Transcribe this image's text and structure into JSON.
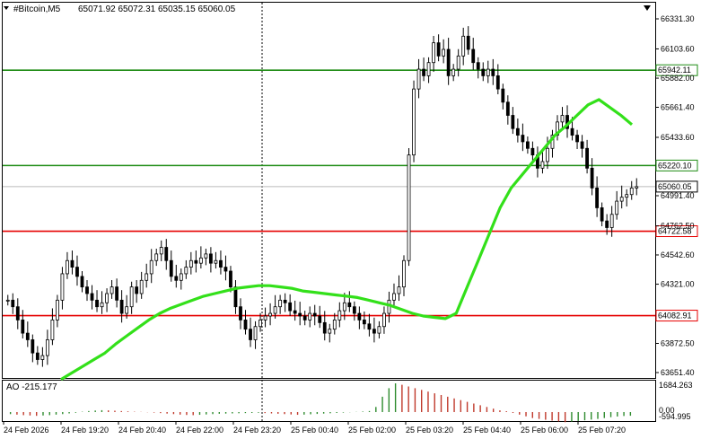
{
  "header": {
    "symbol": "#Bitcoin,M5",
    "ohlc": "65071.92 65072.31 65035.15 65060.05"
  },
  "ao_panel": {
    "label": "AO -215.177",
    "scale_top": "1684.263",
    "scale_zero": "0.00",
    "scale_bottom": "-594.995"
  },
  "colors": {
    "candles": "#000000",
    "ma": "#33e01a",
    "support_line": "#e60000",
    "resistance_line": "#1e8c14",
    "ao_up": "#2e8b2e",
    "ao_down": "#c0392b"
  },
  "chart_data": {
    "type": "candlestick",
    "ylim": [
      63650,
      66400
    ],
    "y_ticks": [
      "66331.30",
      "66103.60",
      "65882.00",
      "65661.40",
      "65433.60",
      "64991.40",
      "64762.50",
      "64542.60",
      "64321.00",
      "63872.50",
      "63651.40"
    ],
    "x_ticks": [
      "24 Feb 2026",
      "24 Feb 19:20",
      "24 Feb 20:40",
      "24 Feb 22:00",
      "24 Feb 23:20",
      "25 Feb 00:40",
      "25 Feb 02:00",
      "25 Feb 03:20",
      "25 Feb 04:40",
      "25 Feb 06:00",
      "25 Feb 07:20"
    ],
    "levels": [
      {
        "value": 65942.11,
        "label": "65942.11",
        "kind": "resistance"
      },
      {
        "value": 65220.1,
        "label": "65220.10",
        "kind": "resistance"
      },
      {
        "value": 64722.58,
        "label": "64722.58",
        "kind": "support"
      },
      {
        "value": 64082.91,
        "label": "64082.91",
        "kind": "support"
      }
    ],
    "current_price": {
      "value": 65060.05,
      "label": "65060.05"
    },
    "close_series": [
      64200,
      64150,
      64050,
      63950,
      63900,
      63800,
      63750,
      63780,
      63900,
      64050,
      64200,
      64400,
      64500,
      64450,
      64380,
      64300,
      64250,
      64200,
      64150,
      64180,
      64250,
      64300,
      64200,
      64100,
      64150,
      64300,
      64250,
      64350,
      64400,
      64500,
      64550,
      64600,
      64500,
      64380,
      64350,
      64400,
      64450,
      64500,
      64480,
      64520,
      64550,
      64480,
      64500,
      64450,
      64420,
      64300,
      64150,
      64050,
      63980,
      63900,
      64000,
      64050,
      64080,
      64100,
      64150,
      64200,
      64180,
      64120,
      64100,
      64080,
      64050,
      64100,
      64080,
      64030,
      63950,
      63980,
      64050,
      64120,
      64180,
      64150,
      64100,
      64050,
      64020,
      63980,
      63950,
      64000,
      64100,
      64200,
      64250,
      64300,
      64500,
      65300,
      65800,
      65950,
      65900,
      66000,
      66150,
      66050,
      66100,
      65900,
      65950,
      66050,
      66200,
      66100,
      66000,
      65950,
      65900,
      65950,
      65900,
      65800,
      65700,
      65600,
      65500,
      65450,
      65400,
      65350,
      65300,
      65200,
      65250,
      65350,
      65450,
      65550,
      65600,
      65500,
      65450,
      65400,
      65350,
      65200,
      65050,
      64900,
      64800,
      64750,
      64850,
      64950,
      64980,
      65000,
      65050,
      65060
    ],
    "ma_series": [
      63600,
      63650,
      63700,
      63750,
      63800,
      63870,
      63930,
      63990,
      64050,
      64100,
      64140,
      64170,
      64200,
      64230,
      64250,
      64270,
      64290,
      64300,
      64310,
      64310,
      64300,
      64290,
      64270,
      64260,
      64250,
      64240,
      64230,
      64220,
      64200,
      64180,
      64160,
      64130,
      64100,
      64080,
      64070,
      64060,
      64100,
      64300,
      64500,
      64700,
      64900,
      65050,
      65150,
      65250,
      65350,
      65450,
      65520,
      65600,
      65680,
      65720,
      65660,
      65600,
      65530
    ],
    "ao_values": [
      -120,
      -150,
      -180,
      -200,
      -220,
      -200,
      -180,
      -150,
      -120,
      -80,
      -40,
      20,
      60,
      90,
      110,
      100,
      80,
      60,
      40,
      20,
      10,
      -10,
      -30,
      -60,
      -90,
      -120,
      -150,
      -170,
      -180,
      -160,
      -140,
      -120,
      -100,
      -90,
      -80,
      -70,
      -60,
      -50,
      -40,
      -60,
      -80,
      -100,
      -120,
      -140,
      -160,
      -150,
      -130,
      -110,
      -90,
      -70,
      -50,
      -30,
      -10,
      10,
      30,
      60,
      300,
      900,
      1400,
      1684,
      1600,
      1500,
      1400,
      1300,
      1200,
      1100,
      1000,
      900,
      800,
      700,
      600,
      500,
      400,
      300,
      200,
      100,
      50,
      -50,
      -150,
      -250,
      -350,
      -400,
      -450,
      -500,
      -550,
      -594,
      -560,
      -520,
      -480,
      -440,
      -400,
      -350,
      -300,
      -260,
      -230,
      -215
    ]
  }
}
